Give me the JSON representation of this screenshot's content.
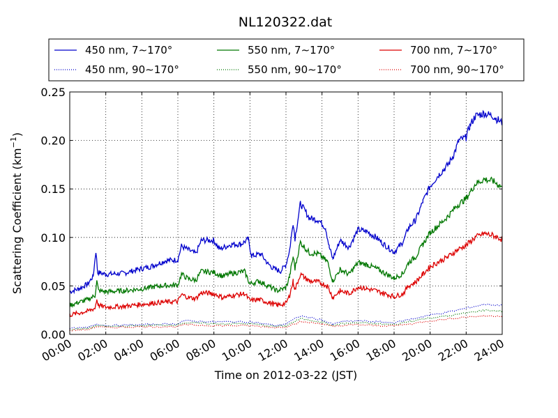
{
  "chart_data": {
    "type": "line",
    "title": "NL120322.dat",
    "xlabel": "Time on 2012-03-22 (JST)",
    "ylabel_main": "Scattering Coefficient (km",
    "ylabel_sup": "−1",
    "ylabel_close": ")",
    "xlim": [
      0,
      24
    ],
    "ylim": [
      0,
      0.25
    ],
    "x_ticks": [
      {
        "value": 0,
        "label": "00:00"
      },
      {
        "value": 2,
        "label": "02:00"
      },
      {
        "value": 4,
        "label": "04:00"
      },
      {
        "value": 6,
        "label": "06:00"
      },
      {
        "value": 8,
        "label": "08:00"
      },
      {
        "value": 10,
        "label": "10:00"
      },
      {
        "value": 12,
        "label": "12:00"
      },
      {
        "value": 14,
        "label": "14:00"
      },
      {
        "value": 16,
        "label": "16:00"
      },
      {
        "value": 18,
        "label": "18:00"
      },
      {
        "value": 20,
        "label": "20:00"
      },
      {
        "value": 22,
        "label": "22:00"
      },
      {
        "value": 24,
        "label": "24:00"
      }
    ],
    "y_ticks": [
      {
        "value": 0.0,
        "label": "0.00"
      },
      {
        "value": 0.05,
        "label": "0.05"
      },
      {
        "value": 0.1,
        "label": "0.10"
      },
      {
        "value": 0.15,
        "label": "0.15"
      },
      {
        "value": 0.2,
        "label": "0.20"
      },
      {
        "value": 0.25,
        "label": "0.25"
      }
    ],
    "grid": true,
    "legend_position": "top",
    "series": [
      {
        "name": "450 nm, 7∼170°",
        "color": "#0000cc",
        "style": "solid",
        "points": [
          [
            0,
            0.044
          ],
          [
            0.5,
            0.047
          ],
          [
            1,
            0.052
          ],
          [
            1.3,
            0.06
          ],
          [
            1.45,
            0.086
          ],
          [
            1.55,
            0.064
          ],
          [
            2,
            0.062
          ],
          [
            3,
            0.063
          ],
          [
            3.8,
            0.067
          ],
          [
            4.5,
            0.07
          ],
          [
            5.3,
            0.076
          ],
          [
            6,
            0.077
          ],
          [
            6.2,
            0.091
          ],
          [
            6.6,
            0.087
          ],
          [
            7,
            0.083
          ],
          [
            7.3,
            0.097
          ],
          [
            8,
            0.097
          ],
          [
            8.3,
            0.088
          ],
          [
            9,
            0.093
          ],
          [
            9.5,
            0.093
          ],
          [
            9.9,
            0.098
          ],
          [
            10.1,
            0.081
          ],
          [
            10.6,
            0.083
          ],
          [
            11,
            0.073
          ],
          [
            11.3,
            0.068
          ],
          [
            11.7,
            0.065
          ],
          [
            12,
            0.072
          ],
          [
            12.2,
            0.087
          ],
          [
            12.4,
            0.115
          ],
          [
            12.5,
            0.099
          ],
          [
            12.8,
            0.135
          ],
          [
            13.3,
            0.12
          ],
          [
            13.8,
            0.118
          ],
          [
            14.2,
            0.11
          ],
          [
            14.4,
            0.09
          ],
          [
            14.6,
            0.078
          ],
          [
            15,
            0.097
          ],
          [
            15.5,
            0.09
          ],
          [
            16,
            0.108
          ],
          [
            16.5,
            0.106
          ],
          [
            17,
            0.1
          ],
          [
            17.5,
            0.092
          ],
          [
            18,
            0.085
          ],
          [
            18.4,
            0.093
          ],
          [
            18.6,
            0.1
          ],
          [
            18.8,
            0.11
          ],
          [
            19.2,
            0.118
          ],
          [
            19.6,
            0.137
          ],
          [
            20,
            0.153
          ],
          [
            20.5,
            0.165
          ],
          [
            21,
            0.175
          ],
          [
            21.3,
            0.185
          ],
          [
            21.6,
            0.2
          ],
          [
            22,
            0.203
          ],
          [
            22.2,
            0.215
          ],
          [
            22.5,
            0.225
          ],
          [
            23,
            0.228
          ],
          [
            23.5,
            0.225
          ],
          [
            24,
            0.218
          ]
        ]
      },
      {
        "name": "550 nm, 7∼170°",
        "color": "#007700",
        "style": "solid",
        "points": [
          [
            0,
            0.03
          ],
          [
            0.5,
            0.033
          ],
          [
            1,
            0.036
          ],
          [
            1.4,
            0.04
          ],
          [
            1.5,
            0.055
          ],
          [
            1.6,
            0.045
          ],
          [
            2,
            0.044
          ],
          [
            3,
            0.045
          ],
          [
            4,
            0.047
          ],
          [
            5,
            0.05
          ],
          [
            6,
            0.051
          ],
          [
            6.2,
            0.062
          ],
          [
            6.6,
            0.057
          ],
          [
            7,
            0.056
          ],
          [
            7.3,
            0.065
          ],
          [
            8,
            0.064
          ],
          [
            8.5,
            0.06
          ],
          [
            9,
            0.063
          ],
          [
            9.7,
            0.065
          ],
          [
            10,
            0.052
          ],
          [
            10.5,
            0.055
          ],
          [
            11,
            0.05
          ],
          [
            11.5,
            0.045
          ],
          [
            12,
            0.048
          ],
          [
            12.2,
            0.06
          ],
          [
            12.4,
            0.08
          ],
          [
            12.5,
            0.068
          ],
          [
            12.8,
            0.095
          ],
          [
            13.3,
            0.084
          ],
          [
            13.8,
            0.083
          ],
          [
            14.3,
            0.075
          ],
          [
            14.6,
            0.055
          ],
          [
            15,
            0.067
          ],
          [
            15.5,
            0.062
          ],
          [
            16,
            0.074
          ],
          [
            16.5,
            0.072
          ],
          [
            17,
            0.068
          ],
          [
            17.5,
            0.063
          ],
          [
            18,
            0.058
          ],
          [
            18.5,
            0.063
          ],
          [
            18.8,
            0.074
          ],
          [
            19.2,
            0.08
          ],
          [
            19.6,
            0.093
          ],
          [
            20,
            0.105
          ],
          [
            20.5,
            0.113
          ],
          [
            21,
            0.122
          ],
          [
            21.5,
            0.133
          ],
          [
            22,
            0.14
          ],
          [
            22.5,
            0.155
          ],
          [
            23,
            0.16
          ],
          [
            23.5,
            0.158
          ],
          [
            24,
            0.152
          ]
        ]
      },
      {
        "name": "700 nm, 7∼170°",
        "color": "#dd0000",
        "style": "solid",
        "points": [
          [
            0,
            0.02
          ],
          [
            0.5,
            0.022
          ],
          [
            1,
            0.024
          ],
          [
            1.4,
            0.027
          ],
          [
            1.5,
            0.036
          ],
          [
            1.6,
            0.03
          ],
          [
            2,
            0.028
          ],
          [
            3,
            0.029
          ],
          [
            4,
            0.031
          ],
          [
            5,
            0.033
          ],
          [
            6,
            0.034
          ],
          [
            6.2,
            0.041
          ],
          [
            6.6,
            0.038
          ],
          [
            7,
            0.037
          ],
          [
            7.3,
            0.043
          ],
          [
            8,
            0.042
          ],
          [
            8.5,
            0.038
          ],
          [
            9,
            0.04
          ],
          [
            9.7,
            0.042
          ],
          [
            10,
            0.035
          ],
          [
            10.5,
            0.036
          ],
          [
            11,
            0.033
          ],
          [
            11.5,
            0.03
          ],
          [
            12,
            0.032
          ],
          [
            12.2,
            0.04
          ],
          [
            12.4,
            0.055
          ],
          [
            12.5,
            0.046
          ],
          [
            12.8,
            0.062
          ],
          [
            13.3,
            0.055
          ],
          [
            13.8,
            0.054
          ],
          [
            14.3,
            0.05
          ],
          [
            14.6,
            0.038
          ],
          [
            15,
            0.045
          ],
          [
            15.5,
            0.042
          ],
          [
            16,
            0.049
          ],
          [
            16.5,
            0.047
          ],
          [
            17,
            0.045
          ],
          [
            17.5,
            0.042
          ],
          [
            18,
            0.039
          ],
          [
            18.5,
            0.042
          ],
          [
            18.8,
            0.05
          ],
          [
            19.2,
            0.054
          ],
          [
            19.6,
            0.062
          ],
          [
            20,
            0.07
          ],
          [
            20.5,
            0.075
          ],
          [
            21,
            0.08
          ],
          [
            21.5,
            0.087
          ],
          [
            22,
            0.092
          ],
          [
            22.5,
            0.1
          ],
          [
            23,
            0.104
          ],
          [
            23.5,
            0.102
          ],
          [
            24,
            0.098
          ]
        ]
      },
      {
        "name": "450 nm, 90∼170°",
        "color": "#0000cc",
        "style": "dotted",
        "points": [
          [
            0,
            0.006
          ],
          [
            1,
            0.007
          ],
          [
            1.5,
            0.011
          ],
          [
            2,
            0.009
          ],
          [
            4,
            0.01
          ],
          [
            6,
            0.011
          ],
          [
            6.3,
            0.014
          ],
          [
            8,
            0.013
          ],
          [
            10,
            0.013
          ],
          [
            11.5,
            0.009
          ],
          [
            12,
            0.011
          ],
          [
            12.8,
            0.019
          ],
          [
            14,
            0.015
          ],
          [
            14.6,
            0.01
          ],
          [
            15,
            0.013
          ],
          [
            16,
            0.014
          ],
          [
            17,
            0.013
          ],
          [
            18,
            0.012
          ],
          [
            19,
            0.016
          ],
          [
            20,
            0.02
          ],
          [
            21,
            0.023
          ],
          [
            22,
            0.027
          ],
          [
            23,
            0.031
          ],
          [
            24,
            0.03
          ]
        ]
      },
      {
        "name": "550 nm, 90∼170°",
        "color": "#007700",
        "style": "dotted",
        "points": [
          [
            0,
            0.005
          ],
          [
            1,
            0.006
          ],
          [
            1.5,
            0.009
          ],
          [
            2,
            0.008
          ],
          [
            4,
            0.009
          ],
          [
            6,
            0.01
          ],
          [
            6.3,
            0.012
          ],
          [
            8,
            0.011
          ],
          [
            10,
            0.011
          ],
          [
            11.5,
            0.008
          ],
          [
            12,
            0.009
          ],
          [
            12.8,
            0.016
          ],
          [
            14,
            0.013
          ],
          [
            14.6,
            0.009
          ],
          [
            15,
            0.011
          ],
          [
            16,
            0.012
          ],
          [
            17,
            0.011
          ],
          [
            18,
            0.01
          ],
          [
            19,
            0.014
          ],
          [
            20,
            0.017
          ],
          [
            21,
            0.019
          ],
          [
            22,
            0.022
          ],
          [
            23,
            0.025
          ],
          [
            24,
            0.024
          ]
        ]
      },
      {
        "name": "700 nm, 90∼170°",
        "color": "#dd0000",
        "style": "dotted",
        "points": [
          [
            0,
            0.004
          ],
          [
            1,
            0.005
          ],
          [
            1.5,
            0.008
          ],
          [
            2,
            0.007
          ],
          [
            4,
            0.008
          ],
          [
            6,
            0.008
          ],
          [
            6.3,
            0.01
          ],
          [
            8,
            0.009
          ],
          [
            10,
            0.009
          ],
          [
            11.5,
            0.007
          ],
          [
            12,
            0.008
          ],
          [
            12.8,
            0.013
          ],
          [
            14,
            0.011
          ],
          [
            14.6,
            0.008
          ],
          [
            15,
            0.009
          ],
          [
            16,
            0.01
          ],
          [
            17,
            0.009
          ],
          [
            18,
            0.009
          ],
          [
            19,
            0.011
          ],
          [
            20,
            0.014
          ],
          [
            21,
            0.016
          ],
          [
            22,
            0.018
          ],
          [
            23,
            0.019
          ],
          [
            24,
            0.019
          ]
        ]
      }
    ]
  }
}
